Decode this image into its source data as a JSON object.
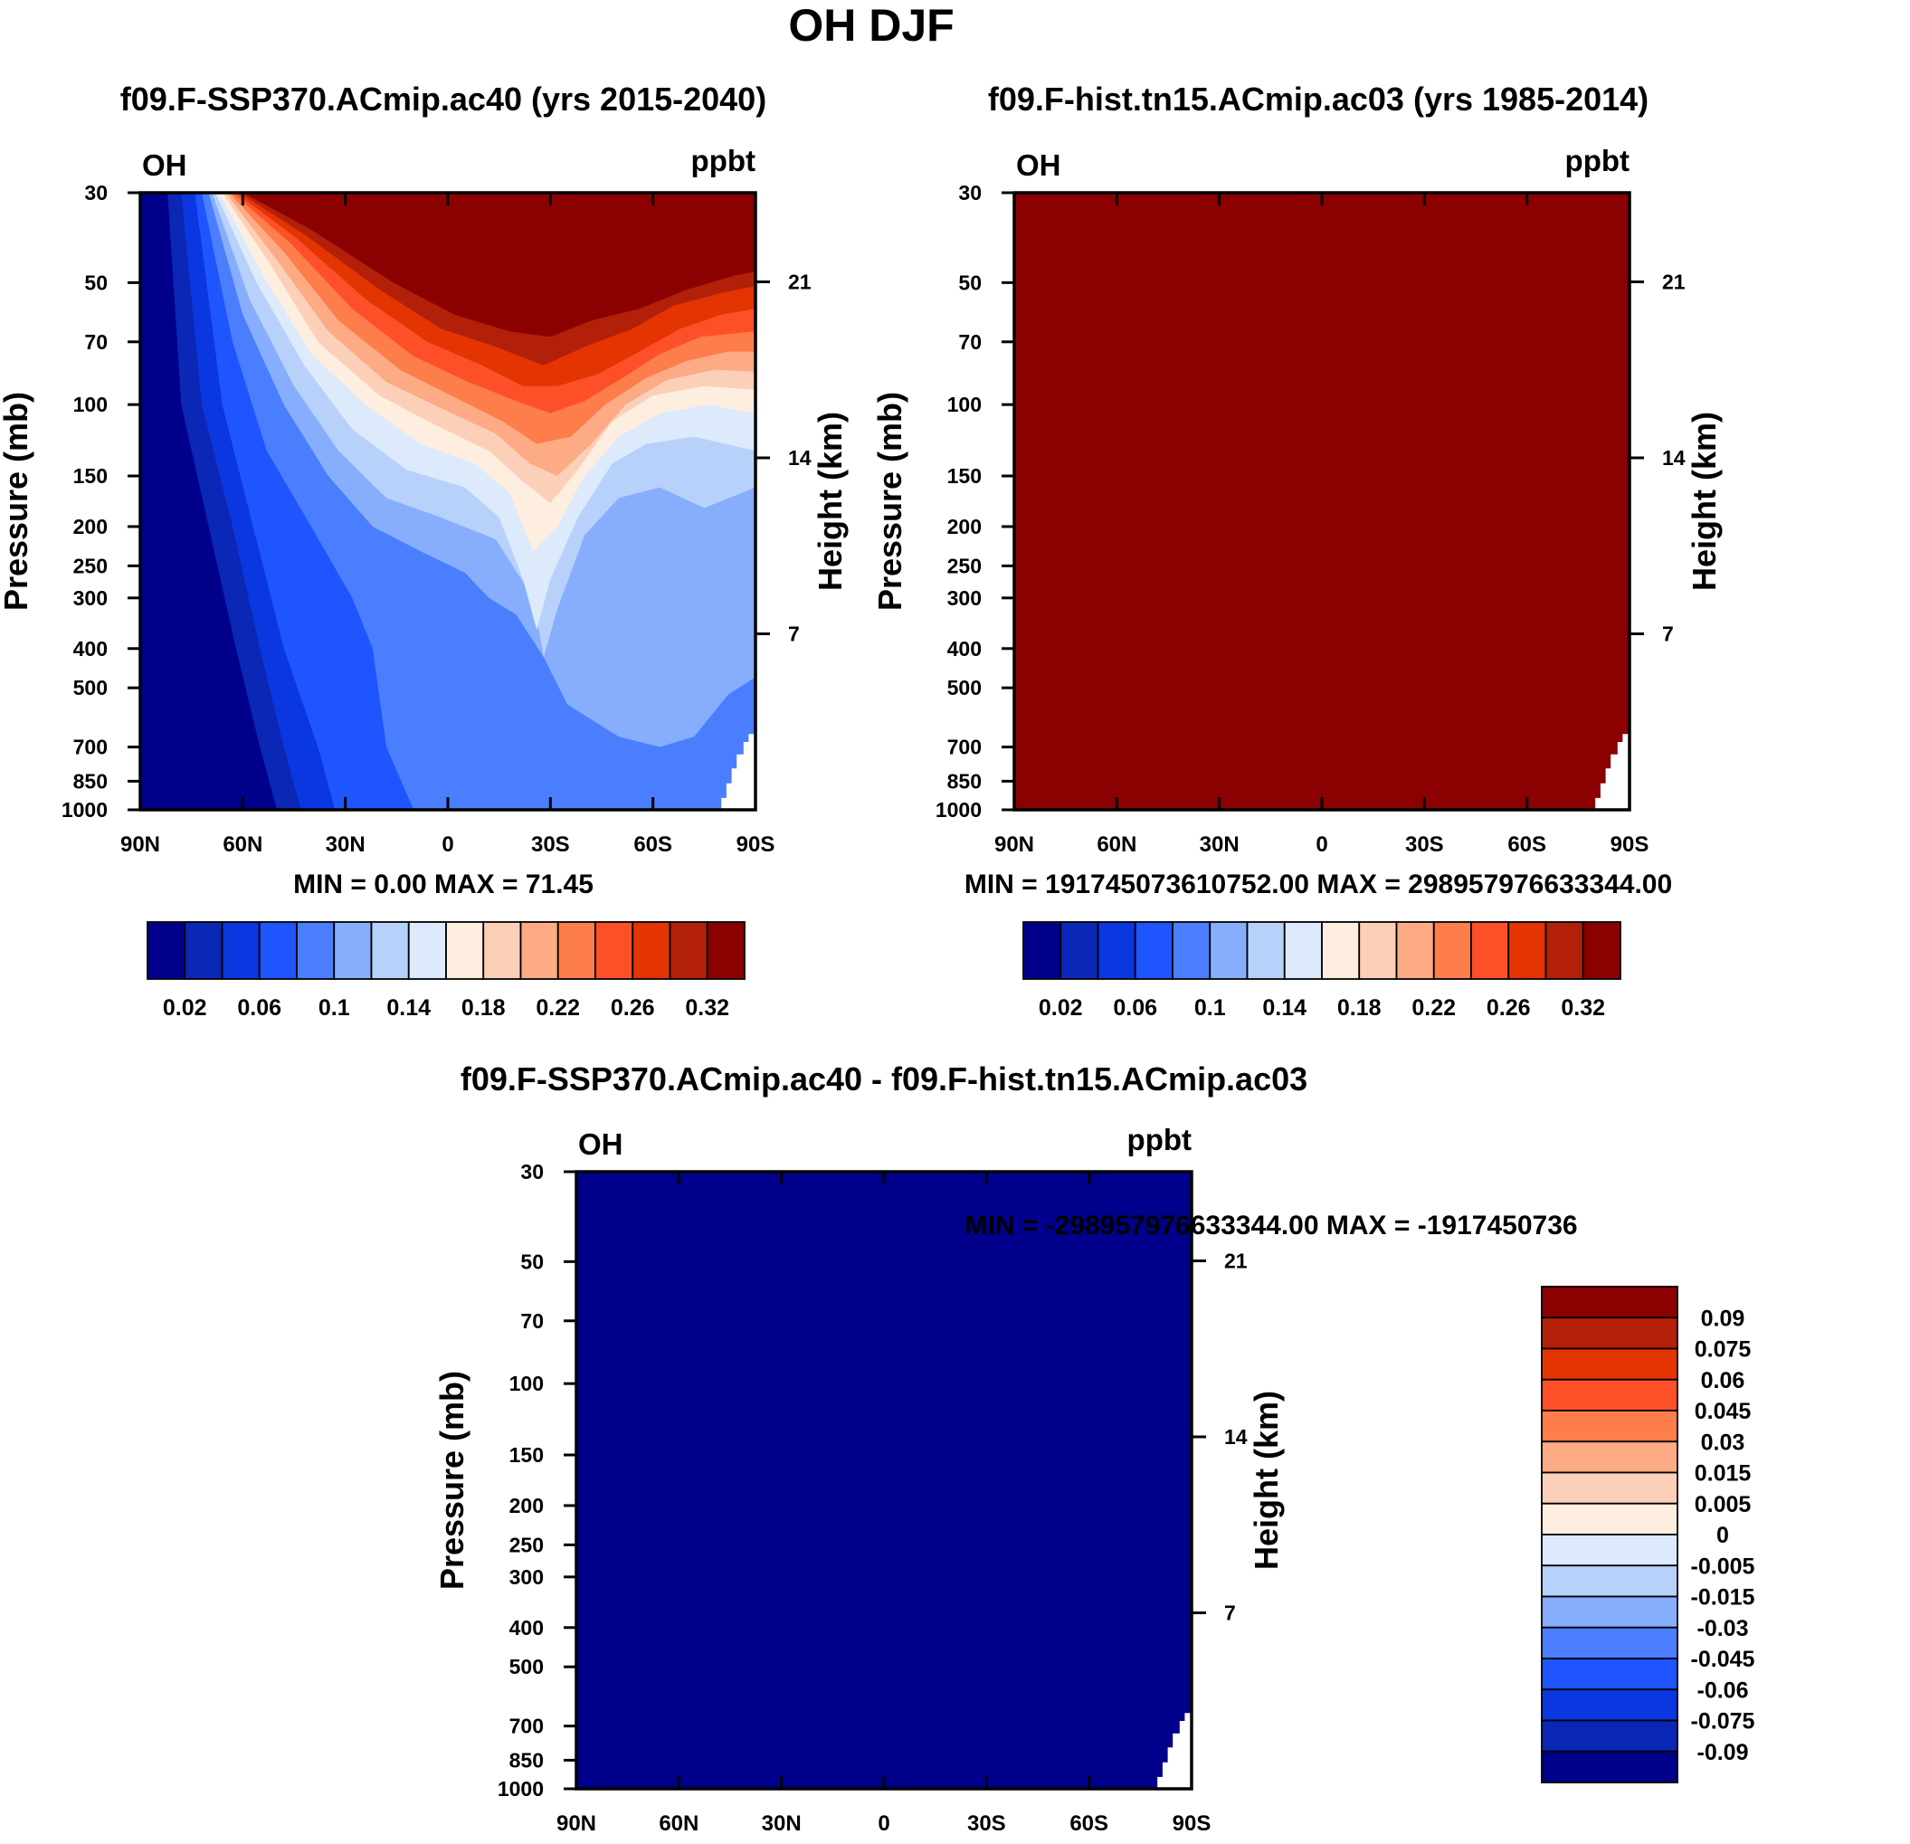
{
  "page_title": "OH DJF",
  "colors": {
    "palette": [
      "#00008b",
      "#0a27b5",
      "#0a37e0",
      "#1e55ff",
      "#4a7eff",
      "#86aefc",
      "#b8d1fb",
      "#dceafb",
      "#feeedf",
      "#fcd0b8",
      "#fcab85",
      "#fd7e4b",
      "#fe5028",
      "#e33402",
      "#b2200a",
      "#8b0000"
    ]
  },
  "chart_data": [
    {
      "id": "panel-a",
      "type": "heatmap",
      "title": "f09.F-SSP370.ACmip.ac40 (yrs 2015-2040)",
      "left_label": "OH",
      "right_label": "ppbt",
      "ylabel": "Pressure (mb)",
      "ylabel_right": "Height (km)",
      "x_ticks": [
        "90N",
        "60N",
        "30N",
        "0",
        "30S",
        "60S",
        "90S"
      ],
      "x_range": [
        90,
        -90
      ],
      "y_ticks": [
        30,
        50,
        70,
        100,
        150,
        200,
        250,
        300,
        400,
        500,
        700,
        850,
        1000
      ],
      "y_range": [
        30,
        1000
      ],
      "height_ticks": [
        21,
        14,
        7
      ],
      "stats": "MIN =    0.00   MAX =  71.45",
      "colorbar_labels": [
        "0.02",
        "0.06",
        "0.1",
        "0.14",
        "0.18",
        "0.22",
        "0.26",
        "0.32"
      ],
      "note": "field values shown as contour classes 0-15 (class index into palette)",
      "boundaries": [
        [
          [
            82,
            30
          ],
          [
            78,
            100
          ],
          [
            70,
            200
          ],
          [
            62,
            400
          ],
          [
            55,
            700
          ],
          [
            50,
            1000
          ]
        ],
        [
          [
            78,
            30
          ],
          [
            72,
            100
          ],
          [
            63,
            200
          ],
          [
            55,
            400
          ],
          [
            48,
            700
          ],
          [
            43,
            1000
          ]
        ],
        [
          [
            74,
            30
          ],
          [
            66,
            100
          ],
          [
            57,
            200
          ],
          [
            48,
            400
          ],
          [
            38,
            700
          ],
          [
            33,
            1000
          ]
        ],
        [
          [
            72,
            30
          ],
          [
            63,
            70
          ],
          [
            53,
            130
          ],
          [
            40,
            200
          ],
          [
            28,
            300
          ],
          [
            22,
            400
          ],
          [
            18,
            700
          ],
          [
            10,
            1000
          ]
        ],
        [
          [
            70,
            30
          ],
          [
            60,
            60
          ],
          [
            48,
            100
          ],
          [
            35,
            150
          ],
          [
            22,
            200
          ],
          [
            8,
            230
          ],
          [
            -5,
            260
          ],
          [
            -12,
            300
          ],
          [
            -20,
            330
          ],
          [
            -28,
            420
          ],
          [
            -35,
            550
          ],
          [
            -50,
            660
          ],
          [
            -62,
            700
          ],
          [
            -72,
            660
          ],
          [
            -82,
            520
          ],
          [
            -90,
            470
          ]
        ],
        [
          [
            69,
            30
          ],
          [
            58,
            55
          ],
          [
            45,
            90
          ],
          [
            32,
            130
          ],
          [
            18,
            170
          ],
          [
            2,
            190
          ],
          [
            -14,
            215
          ],
          [
            -25,
            300
          ],
          [
            -28,
            420
          ],
          [
            -32,
            320
          ],
          [
            -40,
            210
          ],
          [
            -50,
            170
          ],
          [
            -62,
            160
          ],
          [
            -75,
            180
          ],
          [
            -90,
            160
          ]
        ],
        [
          [
            68,
            30
          ],
          [
            56,
            50
          ],
          [
            42,
            80
          ],
          [
            28,
            115
          ],
          [
            12,
            145
          ],
          [
            -5,
            160
          ],
          [
            -15,
            190
          ],
          [
            -22,
            270
          ],
          [
            -26,
            360
          ],
          [
            -30,
            270
          ],
          [
            -38,
            190
          ],
          [
            -48,
            140
          ],
          [
            -58,
            125
          ],
          [
            -72,
            120
          ],
          [
            -90,
            130
          ]
        ],
        [
          [
            67,
            30
          ],
          [
            54,
            48
          ],
          [
            40,
            75
          ],
          [
            24,
            100
          ],
          [
            8,
            125
          ],
          [
            -8,
            140
          ],
          [
            -18,
            165
          ],
          [
            -25,
            230
          ],
          [
            -32,
            200
          ],
          [
            -40,
            150
          ],
          [
            -50,
            120
          ],
          [
            -62,
            105
          ],
          [
            -76,
            100
          ],
          [
            -90,
            105
          ]
        ],
        [
          [
            66,
            30
          ],
          [
            52,
            45
          ],
          [
            38,
            70
          ],
          [
            20,
            95
          ],
          [
            4,
            112
          ],
          [
            -12,
            130
          ],
          [
            -22,
            155
          ],
          [
            -30,
            175
          ],
          [
            -38,
            145
          ],
          [
            -48,
            110
          ],
          [
            -60,
            95
          ],
          [
            -75,
            90
          ],
          [
            -90,
            92
          ]
        ],
        [
          [
            65,
            30
          ],
          [
            50,
            44
          ],
          [
            35,
            66
          ],
          [
            18,
            88
          ],
          [
            0,
            104
          ],
          [
            -14,
            118
          ],
          [
            -24,
            140
          ],
          [
            -32,
            150
          ],
          [
            -42,
            125
          ],
          [
            -52,
            100
          ],
          [
            -64,
            87
          ],
          [
            -78,
            82
          ],
          [
            -90,
            83
          ]
        ],
        [
          [
            64,
            30
          ],
          [
            48,
            42
          ],
          [
            32,
            62
          ],
          [
            14,
            82
          ],
          [
            -2,
            96
          ],
          [
            -16,
            110
          ],
          [
            -26,
            125
          ],
          [
            -36,
            120
          ],
          [
            -46,
            100
          ],
          [
            -58,
            86
          ],
          [
            -70,
            78
          ],
          [
            -82,
            74
          ],
          [
            -90,
            74
          ]
        ],
        [
          [
            63,
            30
          ],
          [
            46,
            40
          ],
          [
            28,
            58
          ],
          [
            10,
            76
          ],
          [
            -6,
            88
          ],
          [
            -20,
            98
          ],
          [
            -30,
            105
          ],
          [
            -40,
            98
          ],
          [
            -52,
            85
          ],
          [
            -62,
            75
          ],
          [
            -74,
            68
          ],
          [
            -90,
            66
          ]
        ],
        [
          [
            62,
            30
          ],
          [
            44,
            39
          ],
          [
            24,
            55
          ],
          [
            6,
            70
          ],
          [
            -10,
            80
          ],
          [
            -22,
            90
          ],
          [
            -32,
            90
          ],
          [
            -44,
            84
          ],
          [
            -56,
            74
          ],
          [
            -68,
            65
          ],
          [
            -80,
            60
          ],
          [
            -90,
            58
          ]
        ],
        [
          [
            61,
            30
          ],
          [
            42,
            38
          ],
          [
            20,
            52
          ],
          [
            2,
            65
          ],
          [
            -14,
            72
          ],
          [
            -28,
            80
          ],
          [
            -40,
            72
          ],
          [
            -54,
            65
          ],
          [
            -66,
            57
          ],
          [
            -80,
            53
          ],
          [
            -90,
            51
          ]
        ],
        [
          [
            60,
            30
          ],
          [
            40,
            37
          ],
          [
            16,
            50
          ],
          [
            -2,
            60
          ],
          [
            -18,
            66
          ],
          [
            -30,
            68
          ],
          [
            -42,
            62
          ],
          [
            -56,
            58
          ],
          [
            -70,
            52
          ],
          [
            -84,
            48
          ],
          [
            -90,
            47
          ]
        ]
      ]
    },
    {
      "id": "panel-b",
      "type": "heatmap",
      "title": "f09.F-hist.tn15.ACmip.ac03 (yrs 1985-2014)",
      "left_label": "OH",
      "right_label": "ppbt",
      "ylabel": "Pressure (mb)",
      "ylabel_right": "Height (km)",
      "x_ticks": [
        "90N",
        "60N",
        "30N",
        "0",
        "30S",
        "60S",
        "90S"
      ],
      "x_range": [
        90,
        -90
      ],
      "y_ticks": [
        30,
        50,
        70,
        100,
        150,
        200,
        250,
        300,
        400,
        500,
        700,
        850,
        1000
      ],
      "y_range": [
        30,
        1000
      ],
      "height_ticks": [
        21,
        14,
        7
      ],
      "stats": "MIN = 191745073610752.00   MAX = 298957976633344.00",
      "colorbar_labels": [
        "0.02",
        "0.06",
        "0.1",
        "0.14",
        "0.18",
        "0.22",
        "0.26",
        "0.32"
      ],
      "fill_class": 15
    },
    {
      "id": "panel-c",
      "type": "heatmap",
      "title": "f09.F-SSP370.ACmip.ac40 - f09.F-hist.tn15.ACmip.ac03",
      "left_label": "OH",
      "right_label": "ppbt",
      "ylabel": "Pressure (mb)",
      "ylabel_right": "Height (km)",
      "x_ticks": [
        "90N",
        "60N",
        "30N",
        "0",
        "30S",
        "60S",
        "90S"
      ],
      "x_range": [
        90,
        -90
      ],
      "y_ticks": [
        30,
        50,
        70,
        100,
        150,
        200,
        250,
        300,
        400,
        500,
        700,
        850,
        1000
      ],
      "y_range": [
        30,
        1000
      ],
      "height_ticks": [
        21,
        14,
        7
      ],
      "stats": "MIN = -298957976633344.00   MAX = -1917450736",
      "colorbar_labels": [
        "0.09",
        "0.075",
        "0.06",
        "0.045",
        "0.03",
        "0.015",
        "0.005",
        "0",
        "-0.005",
        "-0.015",
        "-0.03",
        "-0.045",
        "-0.06",
        "-0.075",
        "-0.09"
      ],
      "fill_class": 0
    }
  ],
  "missing_region": {
    "note": "white (missing) area near surface at high southern latitudes, lat/pressure outline",
    "outline": [
      [
        -52,
        1000
      ],
      [
        -52,
        995
      ],
      [
        -80,
        995
      ],
      [
        -80,
        935
      ],
      [
        -81.5,
        935
      ],
      [
        -81.5,
        860
      ],
      [
        -83,
        860
      ],
      [
        -83,
        790
      ],
      [
        -84.5,
        790
      ],
      [
        -84.5,
        730
      ],
      [
        -86.5,
        730
      ],
      [
        -86.5,
        680
      ],
      [
        -88,
        680
      ],
      [
        -88,
        650
      ],
      [
        -90,
        650
      ],
      [
        -90,
        1000
      ]
    ]
  }
}
